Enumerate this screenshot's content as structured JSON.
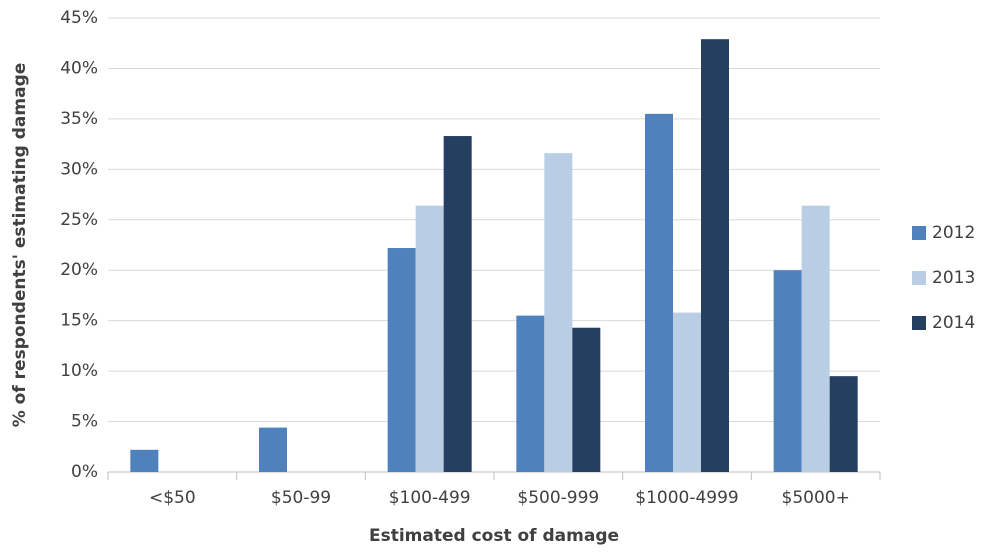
{
  "chart_data": {
    "type": "bar",
    "x_label": "Estimated cost of damage",
    "y_label": "% of respondents' estimating damage",
    "categories": [
      "<$50",
      "$50-99",
      "$100-499",
      "$500-999",
      "$1000-4999",
      "$5000+"
    ],
    "series": [
      {
        "name": "2012",
        "color": "#4f81bd",
        "values": [
          2.2,
          4.4,
          22.2,
          15.5,
          35.5,
          20.0
        ]
      },
      {
        "name": "2013",
        "color": "#b9cde5",
        "values": [
          0,
          0,
          26.4,
          31.6,
          15.8,
          26.4
        ]
      },
      {
        "name": "2014",
        "color": "#243f60",
        "values": [
          0,
          0,
          33.3,
          14.3,
          42.9,
          9.5
        ]
      }
    ],
    "ylim": [
      0,
      45
    ],
    "yticks": [
      {
        "value": 0,
        "label": "0%"
      },
      {
        "value": 5,
        "label": "5%"
      },
      {
        "value": 10,
        "label": "10%"
      },
      {
        "value": 15,
        "label": "15%"
      },
      {
        "value": 20,
        "label": "20%"
      },
      {
        "value": 25,
        "label": "25%"
      },
      {
        "value": 30,
        "label": "30%"
      },
      {
        "value": 35,
        "label": "35%"
      },
      {
        "value": 40,
        "label": "40%"
      },
      {
        "value": 45,
        "label": "45%"
      }
    ],
    "grid": true,
    "legend": "right"
  }
}
